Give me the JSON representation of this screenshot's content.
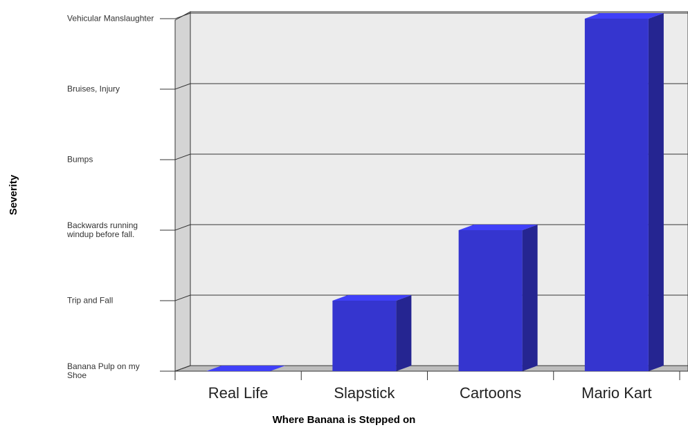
{
  "chart_data": {
    "type": "bar3d",
    "x_label": "Where Banana is Stepped on",
    "y_label": "Severity",
    "categories": [
      "Real Life",
      "Slapstick",
      "Cartoons",
      "Mario Kart"
    ],
    "values": [
      0,
      1,
      2,
      5
    ],
    "color": "#3535cf",
    "ylim": [
      0,
      5
    ],
    "yticks": [
      {
        "value": 0,
        "label": "Banana Pulp on my Shoe"
      },
      {
        "value": 1,
        "label": "Trip and Fall"
      },
      {
        "value": 2,
        "label": "Backwards running windup before fall."
      },
      {
        "value": 3,
        "label": "Bumps"
      },
      {
        "value": 4,
        "label": "Bruises, Injury"
      },
      {
        "value": 5,
        "label": "Vehicular Manslaughter"
      }
    ],
    "grid": true
  }
}
